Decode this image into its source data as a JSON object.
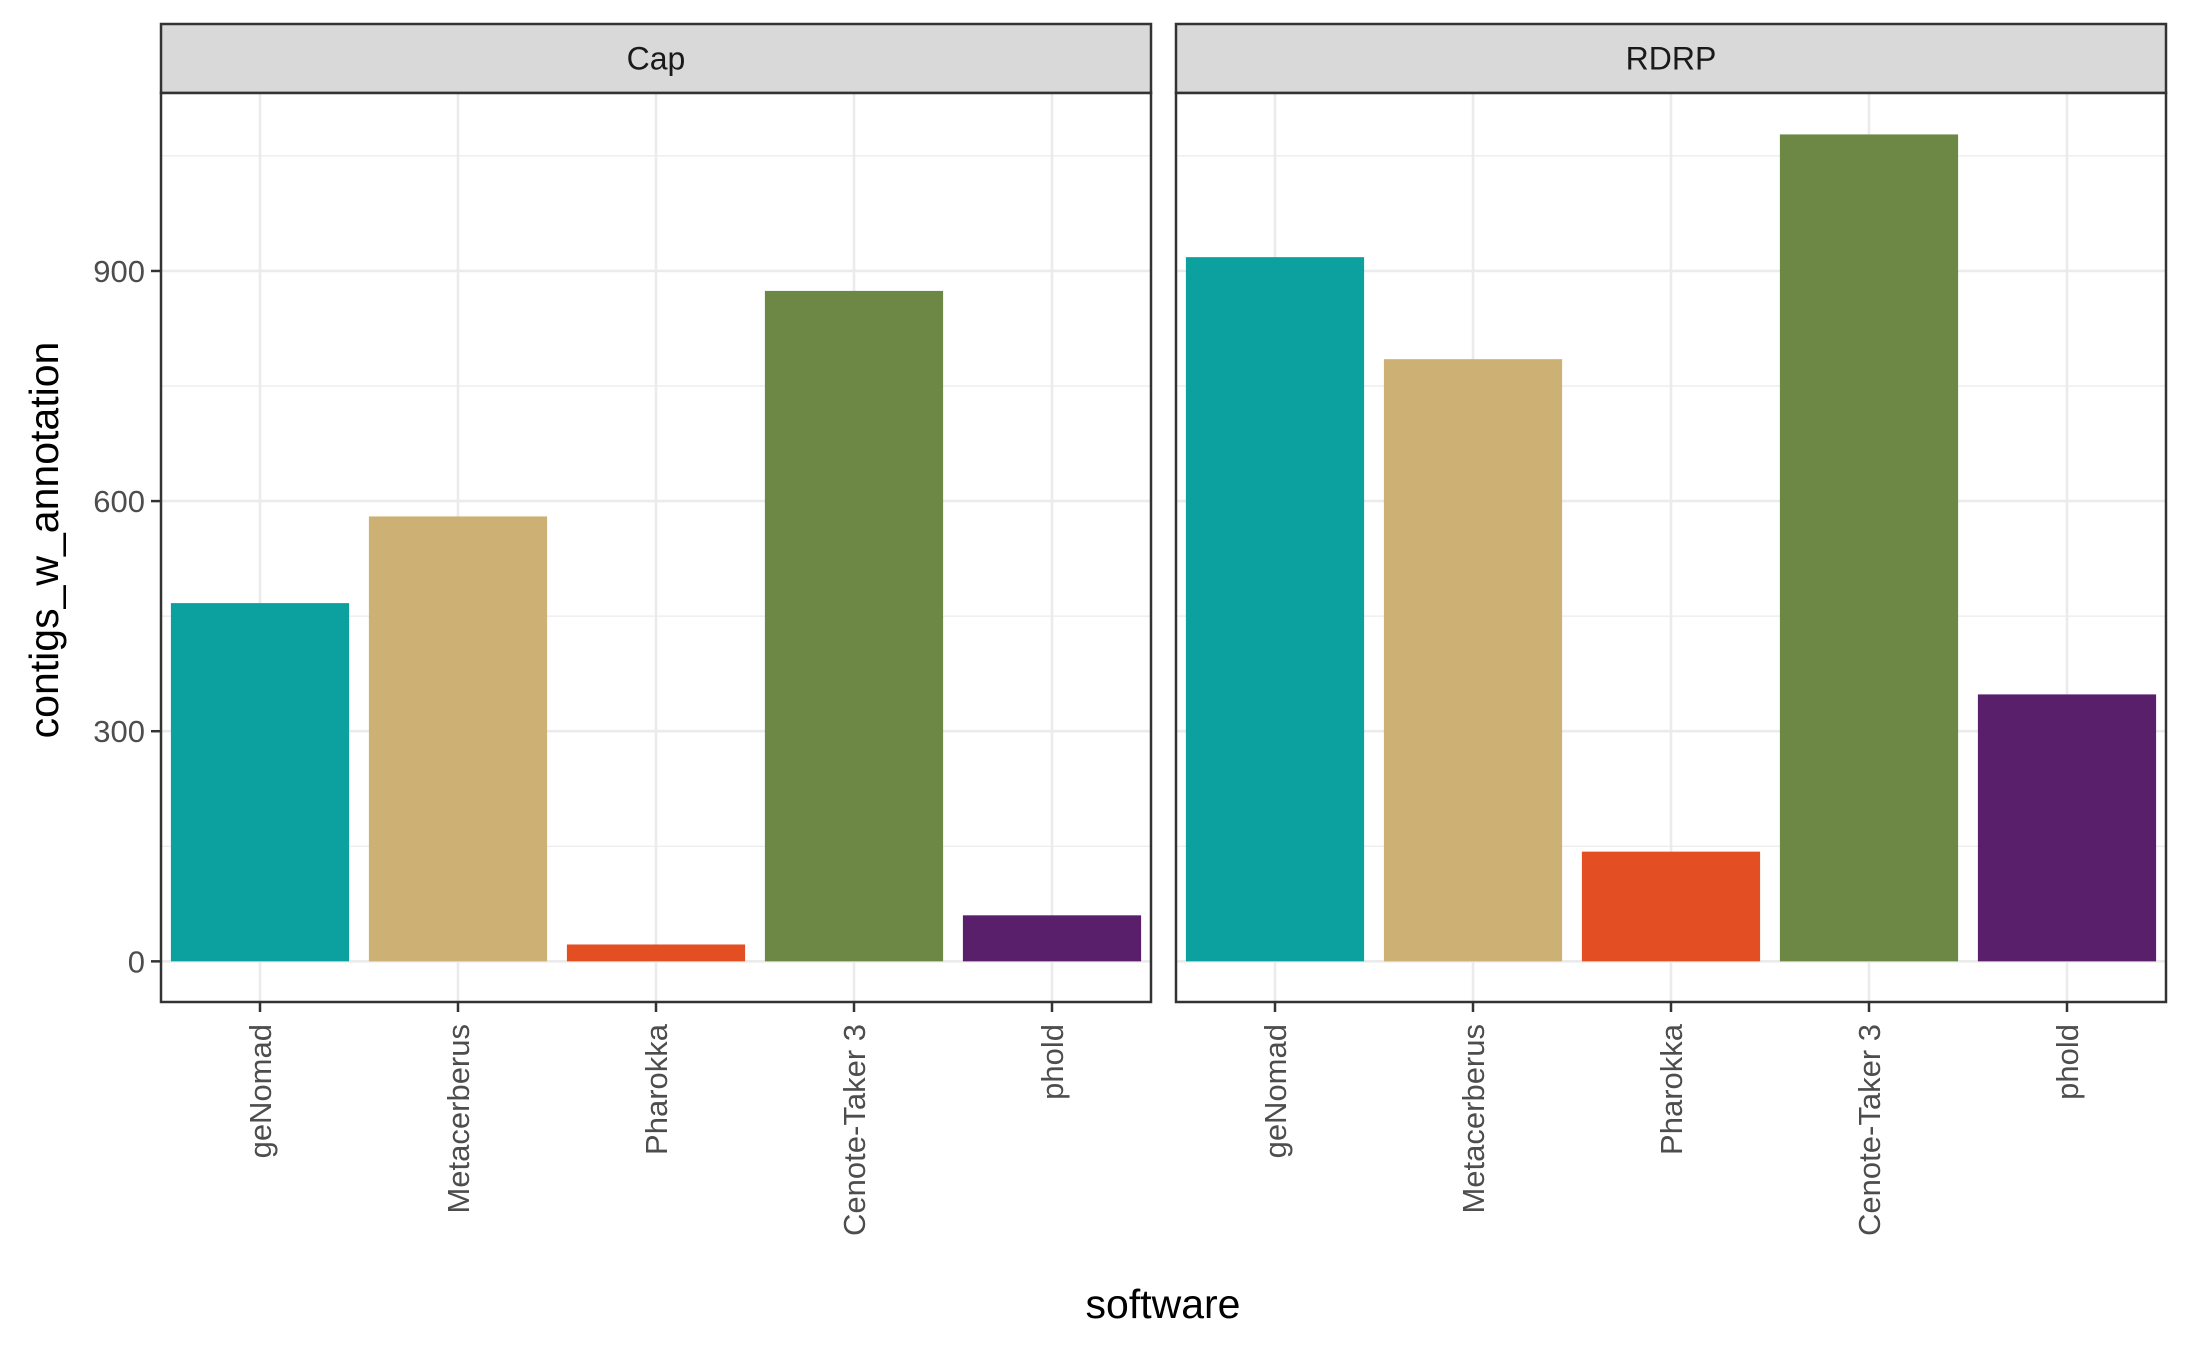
{
  "chart_data": {
    "type": "bar",
    "facet_by": "annotation",
    "panels": [
      {
        "name": "Cap",
        "categories": [
          "geNomad",
          "Metacerberus",
          "Pharokka",
          "Cenote-Taker 3",
          "phold"
        ],
        "values": [
          467,
          580,
          22,
          874,
          60
        ]
      },
      {
        "name": "RDRP",
        "categories": [
          "geNomad",
          "Metacerberus",
          "Pharokka",
          "Cenote-Taker 3",
          "phold"
        ],
        "values": [
          918,
          785,
          143,
          1078,
          348
        ]
      }
    ],
    "colors": {
      "geNomad": "#0ca09e",
      "Metacerberus": "#cdb073",
      "Pharokka": "#e34f22",
      "Cenote-Taker 3": "#6d8845",
      "phold": "#5a1f6b"
    },
    "xlabel": "software",
    "ylabel": "contigs_w_annotation",
    "yticks": [
      0,
      300,
      600,
      900
    ],
    "ylim": [
      -53,
      1132
    ],
    "grid": true,
    "legend": "none",
    "theme": "bw"
  }
}
